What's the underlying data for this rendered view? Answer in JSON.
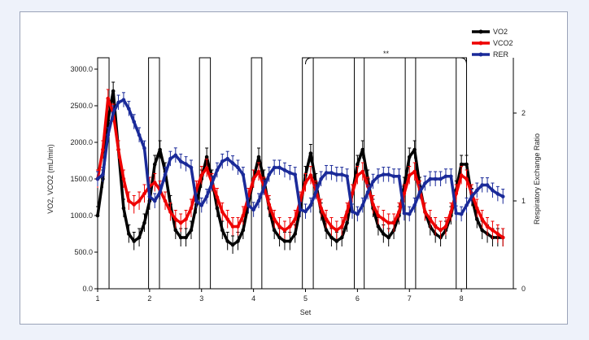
{
  "chart_data": {
    "type": "line",
    "xlabel": "Set",
    "ylabel_left": "VO2, VCO2 (mL/min)",
    "ylabel_right": "Respiratory Exchange Ratio",
    "x_ticks": [
      "1",
      "2",
      "3",
      "4",
      "5",
      "6",
      "7",
      "8"
    ],
    "x_range": [
      1,
      9
    ],
    "y_left_ticks": [
      "0.0",
      "500.0",
      "1000.0",
      "1500.0",
      "2000.0",
      "2500.0",
      "3000.0"
    ],
    "y_left_range": [
      0,
      3000
    ],
    "y_right_ticks": [
      "0",
      "1",
      "2"
    ],
    "y_right_range": [
      0,
      2.5
    ],
    "significance": {
      "label": "**",
      "from_set": 5,
      "to_set": 8.1
    },
    "work_bars": [
      {
        "start": 1.0,
        "end": 1.22
      },
      {
        "start": 1.98,
        "end": 2.19
      },
      {
        "start": 2.96,
        "end": 3.17
      },
      {
        "start": 3.96,
        "end": 4.16
      },
      {
        "start": 4.94,
        "end": 5.15
      },
      {
        "start": 5.94,
        "end": 6.13
      },
      {
        "start": 6.92,
        "end": 7.12
      },
      {
        "start": 7.9,
        "end": 8.1
      }
    ],
    "series": [
      {
        "name": "VO2",
        "color": "#000000",
        "axis": "left",
        "x": [
          1.0,
          1.1,
          1.2,
          1.3,
          1.4,
          1.5,
          1.6,
          1.7,
          1.8,
          1.9,
          2.0,
          2.1,
          2.2,
          2.3,
          2.4,
          2.5,
          2.6,
          2.7,
          2.8,
          2.9,
          3.0,
          3.1,
          3.2,
          3.3,
          3.4,
          3.5,
          3.6,
          3.7,
          3.8,
          3.9,
          4.0,
          4.1,
          4.2,
          4.3,
          4.4,
          4.5,
          4.6,
          4.7,
          4.8,
          4.9,
          5.0,
          5.1,
          5.2,
          5.3,
          5.4,
          5.5,
          5.6,
          5.7,
          5.8,
          5.9,
          6.0,
          6.1,
          6.2,
          6.3,
          6.4,
          6.5,
          6.6,
          6.7,
          6.8,
          6.9,
          7.0,
          7.1,
          7.2,
          7.3,
          7.4,
          7.5,
          7.6,
          7.7,
          7.8,
          7.9,
          8.0,
          8.1,
          8.2,
          8.3,
          8.4,
          8.5,
          8.6,
          8.7,
          8.8
        ],
        "values": [
          1000,
          1500,
          2300,
          2700,
          1900,
          1100,
          750,
          650,
          700,
          900,
          1200,
          1700,
          1900,
          1600,
          1150,
          800,
          700,
          700,
          800,
          1150,
          1500,
          1800,
          1500,
          1100,
          800,
          650,
          600,
          650,
          800,
          1150,
          1500,
          1800,
          1500,
          1100,
          800,
          700,
          650,
          650,
          750,
          1100,
          1550,
          1850,
          1450,
          1050,
          800,
          700,
          650,
          700,
          900,
          1300,
          1700,
          1900,
          1500,
          1100,
          850,
          750,
          700,
          800,
          1000,
          1400,
          1800,
          1900,
          1400,
          1050,
          850,
          750,
          700,
          800,
          1000,
          1350,
          1700,
          1700,
          1250,
          950,
          800,
          750,
          700,
          700,
          700
        ]
      },
      {
        "name": "VCO2",
        "color": "#ee0000",
        "axis": "left",
        "x": [
          1.0,
          1.1,
          1.2,
          1.3,
          1.4,
          1.5,
          1.6,
          1.7,
          1.8,
          1.9,
          2.0,
          2.1,
          2.2,
          2.3,
          2.4,
          2.5,
          2.6,
          2.7,
          2.8,
          2.9,
          3.0,
          3.1,
          3.2,
          3.3,
          3.4,
          3.5,
          3.6,
          3.7,
          3.8,
          3.9,
          4.0,
          4.1,
          4.2,
          4.3,
          4.4,
          4.5,
          4.6,
          4.7,
          4.8,
          4.9,
          5.0,
          5.1,
          5.2,
          5.3,
          5.4,
          5.5,
          5.6,
          5.7,
          5.8,
          5.9,
          6.0,
          6.1,
          6.2,
          6.3,
          6.4,
          6.5,
          6.6,
          6.7,
          6.8,
          6.9,
          7.0,
          7.1,
          7.2,
          7.3,
          7.4,
          7.5,
          7.6,
          7.7,
          7.8,
          7.9,
          8.0,
          8.1,
          8.2,
          8.3,
          8.4,
          8.5,
          8.6,
          8.7,
          8.8
        ],
        "values": [
          1500,
          1900,
          2600,
          2400,
          1900,
          1500,
          1200,
          1150,
          1200,
          1300,
          1400,
          1450,
          1350,
          1200,
          1050,
          950,
          900,
          950,
          1100,
          1350,
          1550,
          1650,
          1450,
          1250,
          1050,
          950,
          850,
          850,
          1000,
          1250,
          1500,
          1600,
          1400,
          1150,
          950,
          850,
          800,
          850,
          950,
          1200,
          1450,
          1550,
          1350,
          1100,
          950,
          850,
          800,
          850,
          1050,
          1300,
          1550,
          1600,
          1400,
          1150,
          1000,
          950,
          900,
          900,
          1050,
          1300,
          1550,
          1600,
          1350,
          1050,
          950,
          850,
          800,
          850,
          1050,
          1300,
          1550,
          1500,
          1300,
          1100,
          950,
          850,
          800,
          750,
          700
        ]
      },
      {
        "name": "RER",
        "color": "#1a2a99",
        "axis": "right",
        "x": [
          1.0,
          1.1,
          1.2,
          1.3,
          1.4,
          1.5,
          1.6,
          1.7,
          1.8,
          1.9,
          2.0,
          2.1,
          2.2,
          2.3,
          2.4,
          2.5,
          2.6,
          2.7,
          2.8,
          2.9,
          3.0,
          3.1,
          3.2,
          3.3,
          3.4,
          3.5,
          3.6,
          3.7,
          3.8,
          3.9,
          4.0,
          4.1,
          4.2,
          4.3,
          4.4,
          4.5,
          4.6,
          4.7,
          4.8,
          4.9,
          5.0,
          5.1,
          5.2,
          5.3,
          5.4,
          5.5,
          5.6,
          5.7,
          5.8,
          5.9,
          6.0,
          6.1,
          6.2,
          6.3,
          6.4,
          6.5,
          6.6,
          6.7,
          6.8,
          6.9,
          7.0,
          7.1,
          7.2,
          7.3,
          7.4,
          7.5,
          7.6,
          7.7,
          7.8,
          7.9,
          8.0,
          8.1,
          8.2,
          8.3,
          8.4,
          8.5,
          8.6,
          8.7,
          8.8
        ],
        "values": [
          1.25,
          1.3,
          1.75,
          2.0,
          2.12,
          2.15,
          2.05,
          1.9,
          1.75,
          1.6,
          1.05,
          1.0,
          1.1,
          1.3,
          1.48,
          1.52,
          1.45,
          1.42,
          1.38,
          1.0,
          0.95,
          1.05,
          1.2,
          1.35,
          1.45,
          1.48,
          1.43,
          1.38,
          1.3,
          0.95,
          0.9,
          1.0,
          1.15,
          1.3,
          1.38,
          1.38,
          1.35,
          1.32,
          1.3,
          0.9,
          0.88,
          0.95,
          1.1,
          1.25,
          1.32,
          1.32,
          1.3,
          1.3,
          1.28,
          0.88,
          0.85,
          0.95,
          1.1,
          1.22,
          1.28,
          1.3,
          1.3,
          1.28,
          1.28,
          0.86,
          0.85,
          0.95,
          1.1,
          1.2,
          1.25,
          1.25,
          1.25,
          1.28,
          1.28,
          0.86,
          0.85,
          0.95,
          1.05,
          1.12,
          1.18,
          1.18,
          1.12,
          1.08,
          1.05
        ]
      }
    ],
    "legend_position": "top-right",
    "grid": false
  }
}
